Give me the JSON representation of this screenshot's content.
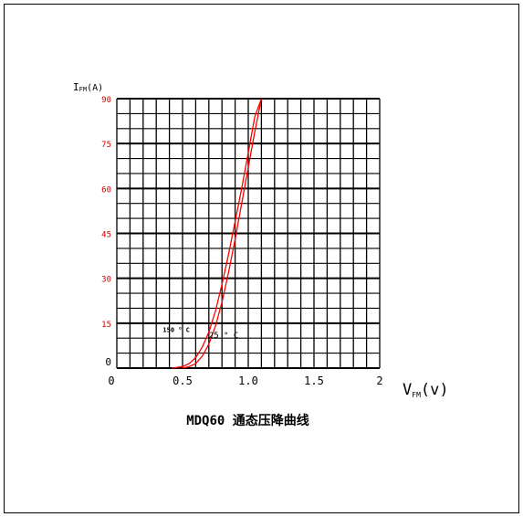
{
  "caption": "MDQ60 通态压降曲线",
  "chart_data": {
    "type": "line",
    "title": "MDQ60 通态压降曲线",
    "ylabel_main": "I",
    "ylabel_sub": "FM",
    "ylabel_unit": "(A)",
    "xlabel_main": "V",
    "xlabel_sub": "FM",
    "xlabel_unit": "(v)",
    "xlim": [
      0,
      2
    ],
    "ylim": [
      0,
      90
    ],
    "x_ticks": [
      {
        "value": 0,
        "label": "0"
      },
      {
        "value": 0.5,
        "label": "0.5"
      },
      {
        "value": 1.0,
        "label": "1.0"
      },
      {
        "value": 1.5,
        "label": "1.5"
      },
      {
        "value": 2,
        "label": "2"
      }
    ],
    "y_ticks": [
      {
        "value": 0,
        "label": "0"
      },
      {
        "value": 15,
        "label": "15"
      },
      {
        "value": 30,
        "label": "30"
      },
      {
        "value": 45,
        "label": "45"
      },
      {
        "value": 60,
        "label": "60"
      },
      {
        "value": 75,
        "label": "75"
      },
      {
        "value": 90,
        "label": "90"
      }
    ],
    "grid": true,
    "axis_color": "#000000",
    "tick_label_color_y": "#cc0000",
    "series_color": "#ff0000",
    "series": [
      {
        "name": "150 ° C",
        "label_at": {
          "x": 0.35,
          "y": 12
        },
        "x": [
          0.42,
          0.5,
          0.55,
          0.6,
          0.65,
          0.7,
          0.75,
          0.8,
          0.85,
          0.9,
          0.95,
          1.0,
          1.05,
          1.1
        ],
        "y": [
          0,
          0.5,
          1.5,
          3.5,
          7,
          12,
          19,
          28,
          38,
          49,
          60,
          72,
          84,
          90
        ]
      },
      {
        "name": "25 ° C",
        "label_at": {
          "x": 0.7,
          "y": 10
        },
        "x": [
          0.5,
          0.55,
          0.6,
          0.65,
          0.7,
          0.75,
          0.8,
          0.85,
          0.9,
          0.95,
          1.0,
          1.05,
          1.1
        ],
        "y": [
          0,
          0.5,
          1.5,
          4,
          8,
          14,
          22,
          32,
          43,
          55,
          67,
          79,
          90
        ]
      }
    ]
  }
}
